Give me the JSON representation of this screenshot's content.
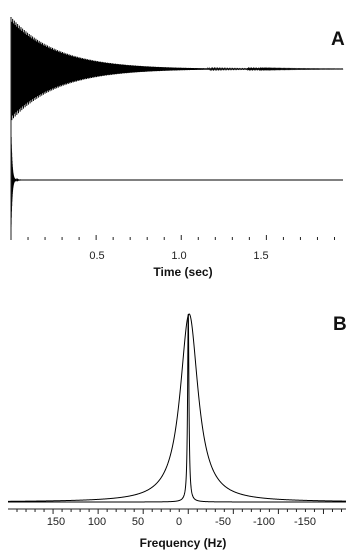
{
  "chart_data": [
    {
      "type": "line",
      "panel_label": "A",
      "xlabel": "Time (sec)",
      "ylabel": "",
      "xlim": [
        0,
        1.95
      ],
      "x_ticks": [
        0.5,
        1.0,
        1.5
      ],
      "x_tick_labels": [
        "0.5",
        "1.0",
        "1.5"
      ],
      "grid": false,
      "series": [
        {
          "signal": "decaying oscillation",
          "start_amplitude": 1.0,
          "decay_time_constant_sec": 0.27
        },
        {
          "signal": "decaying oscillation",
          "start_amplitude": 1.0,
          "decay_time_constant_sec": 0.006
        }
      ]
    },
    {
      "type": "line",
      "panel_label": "B",
      "xlabel": "Frequency (Hz)",
      "ylabel": "",
      "xlim": [
        200,
        -175
      ],
      "x_reversed": true,
      "x_ticks": [
        150,
        100,
        50,
        0,
        -50,
        -100,
        -150
      ],
      "x_tick_labels": [
        "150",
        "100",
        "50",
        "0",
        "-50",
        "-100",
        "-150"
      ],
      "grid": false,
      "series": [
        {
          "shape": "Lorentzian",
          "center_hz": -1,
          "half_width_hz": 12,
          "peak": 1.0
        },
        {
          "shape": "Lorentzian",
          "center_hz": 0,
          "half_width_hz": 0.9,
          "peak": 1.0
        }
      ]
    }
  ],
  "colors": {
    "trace": "#000000",
    "axis": "#222222"
  }
}
